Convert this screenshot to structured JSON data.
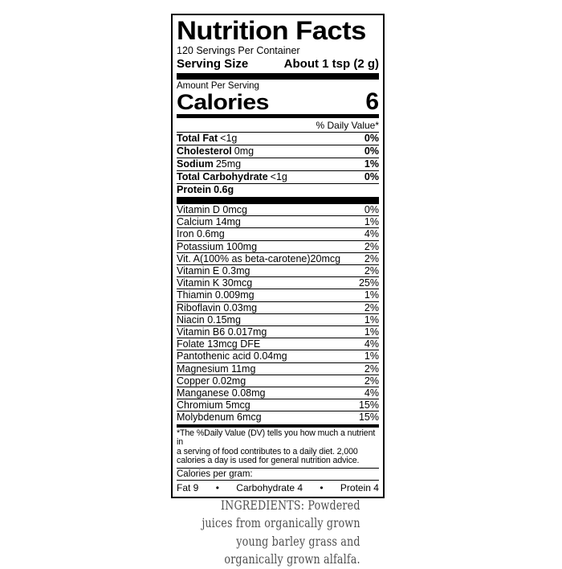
{
  "colors": {
    "label_text": "#000000",
    "rule": "#000000",
    "ingredients_text": "#4f4f4f",
    "background": "#ffffff"
  },
  "nutrition_label": {
    "title": "Nutrition Facts",
    "servings_per_container": "120 Servings Per Container",
    "serving_size": {
      "label": "Serving Size",
      "value": "About 1 tsp (2 g)"
    },
    "amount_per_serving": "Amount Per Serving",
    "calories": {
      "label": "Calories",
      "value": "6"
    },
    "daily_value_header": "% Daily Value*",
    "main_nutrients": [
      {
        "name": "Total Fat",
        "amount": "<1g",
        "dv": "0%"
      },
      {
        "name": "Cholesterol",
        "amount": "0mg",
        "dv": "0%"
      },
      {
        "name": "Sodium",
        "amount": "25mg",
        "dv": "1%"
      },
      {
        "name": "Total Carbohydrate",
        "amount": "<1g",
        "dv": "0%"
      },
      {
        "name": "Protein",
        "amount": "0.6g",
        "dv": ""
      }
    ],
    "micronutrients": [
      {
        "name": "Vitamin D 0mcg",
        "dv": "0%"
      },
      {
        "name": "Calcium 14mg",
        "dv": "1%"
      },
      {
        "name": "Iron 0.6mg",
        "dv": "4%"
      },
      {
        "name": "Potassium 100mg",
        "dv": "2%"
      },
      {
        "name": "Vit. A(100% as beta-carotene)20mcg",
        "dv": "2%"
      },
      {
        "name": "Vitamin E 0.3mg",
        "dv": "2%"
      },
      {
        "name": "Vitamin K 30mcg",
        "dv": "25%"
      },
      {
        "name": "Thiamin 0.009mg",
        "dv": "1%"
      },
      {
        "name": "Riboflavin 0.03mg",
        "dv": "2%"
      },
      {
        "name": "Niacin 0.15mg",
        "dv": "1%"
      },
      {
        "name": "Vitamin B6 0.017mg",
        "dv": "1%"
      },
      {
        "name": "Folate 13mcg DFE",
        "dv": "4%"
      },
      {
        "name": "Pantothenic acid 0.04mg",
        "dv": "1%"
      },
      {
        "name": "Magnesium 11mg",
        "dv": "2%"
      },
      {
        "name": "Copper 0.02mg",
        "dv": "2%"
      },
      {
        "name": "Manganese 0.08mg",
        "dv": "4%"
      },
      {
        "name": "Chromium 5mcg",
        "dv": "15%"
      },
      {
        "name": "Molybdenum 6mcg",
        "dv": "15%"
      }
    ],
    "footnote_lines": [
      "*The %Daily Value (DV) tells you how much a nutrient in",
      "a serving of food contributes to a daily diet. 2,000",
      "calories a day is used for general nutrition advice."
    ],
    "calories_per_gram": {
      "label": "Calories per gram:",
      "bullet": "•",
      "items": [
        "Fat 9",
        "Carbohydrate 4",
        "Protein 4"
      ]
    }
  },
  "ingredients": {
    "lines": [
      "INGREDIENTS:  Powdered",
      "juices from organically grown",
      "young barley grass and",
      "organically grown alfalfa."
    ]
  }
}
